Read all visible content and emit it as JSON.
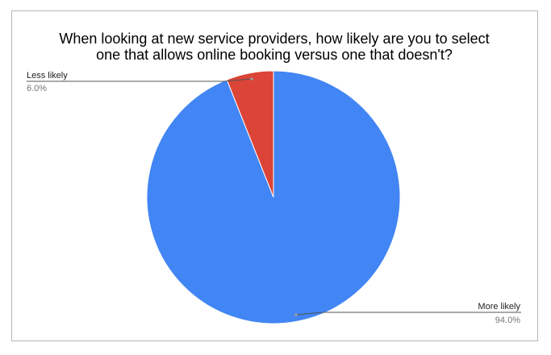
{
  "chart_data": {
    "type": "pie",
    "title_lines": [
      "When looking at new service providers, how likely are you to select",
      "one that allows online booking versus one that doesn't?"
    ],
    "slices": [
      {
        "label": "More likely",
        "value": 94.0,
        "value_label": "94.0%",
        "color": "#4285f4"
      },
      {
        "label": "Less likely",
        "value": 6.0,
        "value_label": "6.0%",
        "color": "#db4437"
      }
    ]
  }
}
